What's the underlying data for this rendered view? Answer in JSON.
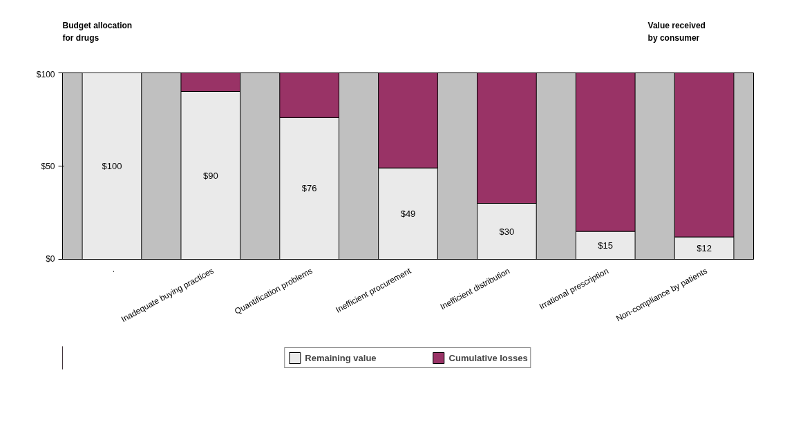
{
  "chart_data": {
    "type": "bar",
    "stacked": true,
    "categories": [
      ".",
      "Inadequate buying practices",
      "Quantification problems",
      "Inefficient procurement",
      "Inefficient distribution",
      "Irrational prescription",
      "Non-compliance by patients"
    ],
    "series": [
      {
        "name": "Remaining value",
        "color": "#eaeaea",
        "values": [
          100,
          90,
          76,
          49,
          30,
          15,
          12
        ],
        "value_labels": [
          "$100",
          "$90",
          "$76",
          "$49",
          "$30",
          "$15",
          "$12"
        ]
      },
      {
        "name": "Cumulative losses",
        "color": "#993366",
        "values": [
          0,
          10,
          24,
          51,
          70,
          85,
          88
        ]
      }
    ],
    "ylim": [
      0,
      100
    ],
    "yticks": [
      {
        "value": 0,
        "label": "$0"
      },
      {
        "value": 50,
        "label": "$50"
      },
      {
        "value": 100,
        "label": "$100"
      }
    ],
    "grid": false,
    "legend": "bottom",
    "annotations": [
      "Budget allocation for drugs",
      "Value received by consumer"
    ]
  }
}
